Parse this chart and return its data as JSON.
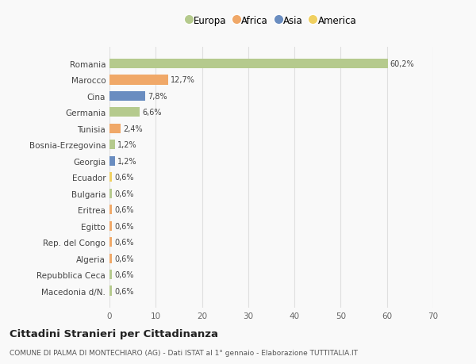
{
  "categories": [
    "Macedonia d/N.",
    "Repubblica Ceca",
    "Algeria",
    "Rep. del Congo",
    "Egitto",
    "Eritrea",
    "Bulgaria",
    "Ecuador",
    "Georgia",
    "Bosnia-Erzegovina",
    "Tunisia",
    "Germania",
    "Cina",
    "Marocco",
    "Romania"
  ],
  "values": [
    0.6,
    0.6,
    0.6,
    0.6,
    0.6,
    0.6,
    0.6,
    0.6,
    1.2,
    1.2,
    2.4,
    6.6,
    7.8,
    12.7,
    60.2
  ],
  "labels": [
    "0,6%",
    "0,6%",
    "0,6%",
    "0,6%",
    "0,6%",
    "0,6%",
    "0,6%",
    "0,6%",
    "1,2%",
    "1,2%",
    "2,4%",
    "6,6%",
    "7,8%",
    "12,7%",
    "60,2%"
  ],
  "colors": [
    "#b5ca8d",
    "#b5ca8d",
    "#f0a868",
    "#f0a868",
    "#f0a868",
    "#f0a868",
    "#b5ca8d",
    "#f0d060",
    "#6a8dc0",
    "#b5ca8d",
    "#f0a868",
    "#b5ca8d",
    "#6a8dc0",
    "#f0a868",
    "#b5ca8d"
  ],
  "legend": [
    {
      "label": "Europa",
      "color": "#b5ca8d"
    },
    {
      "label": "Africa",
      "color": "#f0a868"
    },
    {
      "label": "Asia",
      "color": "#6a8dc0"
    },
    {
      "label": "America",
      "color": "#f0d060"
    }
  ],
  "title": "Cittadini Stranieri per Cittadinanza",
  "subtitle": "COMUNE DI PALMA DI MONTECHIARO (AG) - Dati ISTAT al 1° gennaio - Elaborazione TUTTITALIA.IT",
  "xlabel_ticks": [
    0,
    10,
    20,
    30,
    40,
    50,
    60,
    70
  ],
  "xlim": [
    0,
    70
  ],
  "background_color": "#f9f9f9",
  "grid_color": "#e0e0e0"
}
